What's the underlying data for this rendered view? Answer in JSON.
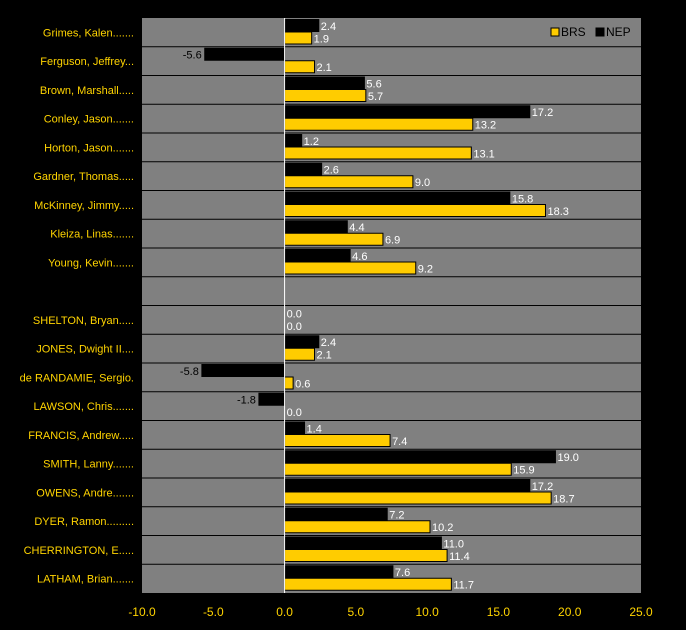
{
  "chart_data": {
    "type": "bar",
    "orientation": "horizontal",
    "categories": [
      "Grimes, Kalen.......",
      "Ferguson, Jeffrey...",
      "Brown, Marshall.....",
      "Conley, Jason.......",
      "Horton, Jason.......",
      "Gardner, Thomas.....",
      "McKinney, Jimmy.....",
      "Kleiza, Linas.......",
      "Young, Kevin.......",
      "",
      "SHELTON, Bryan.....",
      "JONES, Dwight II....",
      "de RANDAMIE, Sergio.",
      "LAWSON, Chris.......",
      "FRANCIS, Andrew.....",
      "SMITH, Lanny.......",
      "OWENS, Andre.......",
      "DYER, Ramon.........",
      "CHERRINGTON, E.....",
      "LATHAM, Brian......."
    ],
    "series": [
      {
        "name": "NEP",
        "color": "#000000",
        "values": [
          2.4,
          -5.6,
          5.6,
          17.2,
          1.2,
          2.6,
          15.8,
          4.4,
          4.6,
          null,
          0.0,
          2.4,
          -5.8,
          -1.8,
          1.4,
          19.0,
          17.2,
          7.2,
          11.0,
          7.6
        ],
        "labels": [
          "2.4",
          "-5.6",
          "5.6",
          "17.2",
          "1.2",
          "2.6",
          "15.8",
          "4.4",
          "4.6",
          "",
          "0.0",
          "2.4",
          "-5.8",
          "-1.8",
          "1.4",
          "19.0",
          "17.2",
          "7.2",
          "11.0",
          "7.6"
        ]
      },
      {
        "name": "BRS",
        "color": "#FFCC00",
        "values": [
          1.9,
          2.1,
          5.7,
          13.2,
          13.1,
          9.0,
          18.3,
          6.9,
          9.2,
          null,
          0.0,
          2.1,
          0.6,
          0.0,
          7.4,
          15.9,
          18.7,
          10.2,
          11.4,
          11.7
        ],
        "labels": [
          "1.9",
          "2.1",
          "5.7",
          "13.2",
          "13.1",
          "9.0",
          "18.3",
          "6.9",
          "9.2",
          "",
          "0.0",
          "2.1",
          "0.6",
          "0.0",
          "7.4",
          "15.9",
          "18.7",
          "10.2",
          "11.4",
          "11.7"
        ]
      }
    ],
    "xlim": [
      -10,
      25
    ],
    "xticks": [
      "-10.0",
      "-5.0",
      "0.0",
      "5.0",
      "10.0",
      "15.0",
      "20.0",
      "25.0"
    ],
    "title": "",
    "xlabel": "",
    "ylabel": "",
    "grid": "horizontal",
    "legend_position": "top-right",
    "legend": [
      "BRS",
      "NEP"
    ],
    "plot_background": "#808080",
    "page_background": "#000000"
  }
}
